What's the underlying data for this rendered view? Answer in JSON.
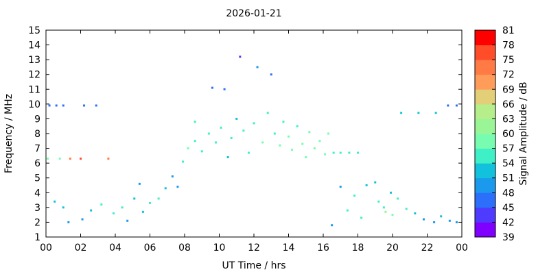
{
  "chart_data": {
    "type": "scatter",
    "title": "2026-01-21",
    "xlabel": "UT Time / hrs",
    "ylabel": "Frequency / MHz",
    "xlim": [
      0,
      24
    ],
    "ylim": [
      1,
      15
    ],
    "x_ticks": [
      "00",
      "02",
      "04",
      "06",
      "08",
      "10",
      "12",
      "14",
      "16",
      "18",
      "20",
      "22",
      "00"
    ],
    "y_ticks": [
      "1",
      "2",
      "3",
      "4",
      "5",
      "6",
      "7",
      "8",
      "9",
      "10",
      "11",
      "12",
      "13",
      "14",
      "15"
    ],
    "colorbar": {
      "label": "Signal Amplitude / dB",
      "ticks": [
        "39",
        "42",
        "45",
        "48",
        "51",
        "54",
        "57",
        "60",
        "63",
        "66",
        "69",
        "72",
        "75",
        "78",
        "81"
      ],
      "min": 39,
      "max": 81,
      "colors": [
        "#7f00ff",
        "#4f3bff",
        "#2b6ffa",
        "#1a99ed",
        "#12c2dc",
        "#3ff0c6",
        "#78fdb0",
        "#9af596",
        "#b6ee8b",
        "#e3cf78",
        "#ff9c5a",
        "#ff7a45",
        "#ff4d2a",
        "#ff0000"
      ]
    },
    "series": [
      {
        "points": [
          [
            0.2,
            9.9,
            47
          ],
          [
            0.6,
            9.9,
            47
          ],
          [
            1.0,
            9.9,
            47
          ],
          [
            2.2,
            9.9,
            47
          ],
          [
            2.9,
            9.9,
            47
          ],
          [
            0.1,
            6.3,
            58
          ],
          [
            0.8,
            6.3,
            58
          ],
          [
            1.4,
            6.3,
            72
          ],
          [
            2.0,
            6.3,
            76
          ],
          [
            3.6,
            6.3,
            72
          ],
          [
            0.5,
            3.4,
            52
          ],
          [
            1.0,
            3.0,
            52
          ],
          [
            1.3,
            2.0,
            48
          ],
          [
            2.1,
            2.2,
            50
          ],
          [
            2.6,
            2.8,
            53
          ],
          [
            3.2,
            3.2,
            54
          ],
          [
            3.9,
            2.6,
            54
          ],
          [
            4.4,
            3.0,
            55
          ],
          [
            4.7,
            2.1,
            50
          ],
          [
            5.1,
            3.6,
            53
          ],
          [
            5.4,
            4.6,
            50
          ],
          [
            5.6,
            2.7,
            53
          ],
          [
            6.0,
            3.3,
            55
          ],
          [
            6.5,
            3.6,
            55
          ],
          [
            6.9,
            4.3,
            53
          ],
          [
            7.3,
            5.1,
            50
          ],
          [
            7.6,
            4.4,
            50
          ],
          [
            7.9,
            6.1,
            55
          ],
          [
            8.2,
            7.0,
            57
          ],
          [
            8.6,
            7.5,
            55
          ],
          [
            8.6,
            8.8,
            55
          ],
          [
            9.0,
            6.8,
            56
          ],
          [
            9.4,
            8.0,
            55
          ],
          [
            9.6,
            11.1,
            45
          ],
          [
            9.8,
            7.4,
            55
          ],
          [
            10.1,
            8.4,
            55
          ],
          [
            10.3,
            11.0,
            45
          ],
          [
            10.5,
            6.4,
            52
          ],
          [
            10.7,
            7.7,
            55
          ],
          [
            11.0,
            9.0,
            53
          ],
          [
            11.2,
            13.2,
            43
          ],
          [
            11.4,
            8.2,
            55
          ],
          [
            11.7,
            6.7,
            55
          ],
          [
            12.0,
            8.7,
            55
          ],
          [
            12.2,
            12.5,
            48
          ],
          [
            12.5,
            7.4,
            57
          ],
          [
            12.8,
            9.4,
            56
          ],
          [
            13.0,
            12.0,
            46
          ],
          [
            13.2,
            8.0,
            55
          ],
          [
            13.5,
            7.2,
            57
          ],
          [
            13.7,
            8.8,
            55
          ],
          [
            14.0,
            7.8,
            57
          ],
          [
            14.2,
            6.9,
            58
          ],
          [
            14.5,
            8.5,
            56
          ],
          [
            14.8,
            7.3,
            58
          ],
          [
            15.0,
            6.4,
            58
          ],
          [
            15.2,
            8.1,
            57
          ],
          [
            15.5,
            7.0,
            58
          ],
          [
            15.8,
            7.5,
            59
          ],
          [
            16.1,
            6.6,
            57
          ],
          [
            16.3,
            8.0,
            57
          ],
          [
            16.6,
            6.7,
            55
          ],
          [
            17.0,
            6.7,
            55
          ],
          [
            17.5,
            6.7,
            55
          ],
          [
            18.0,
            6.7,
            55
          ],
          [
            18.5,
            4.5,
            53
          ],
          [
            19.0,
            4.7,
            52
          ],
          [
            19.2,
            3.4,
            54
          ],
          [
            19.5,
            3.0,
            55
          ],
          [
            19.9,
            4.0,
            53
          ],
          [
            20.3,
            3.6,
            54
          ],
          [
            20.8,
            2.9,
            54
          ],
          [
            21.3,
            2.6,
            52
          ],
          [
            21.8,
            2.2,
            50
          ],
          [
            22.4,
            2.0,
            50
          ],
          [
            22.8,
            2.4,
            52
          ],
          [
            23.3,
            2.1,
            50
          ],
          [
            23.7,
            2.0,
            50
          ],
          [
            20.5,
            9.4,
            51
          ],
          [
            21.5,
            9.4,
            51
          ],
          [
            22.5,
            9.4,
            51
          ],
          [
            23.2,
            9.9,
            45
          ],
          [
            23.7,
            9.9,
            45
          ],
          [
            17.0,
            4.4,
            50
          ],
          [
            17.4,
            2.8,
            55
          ],
          [
            17.8,
            3.8,
            54
          ],
          [
            18.2,
            2.3,
            55
          ],
          [
            19.6,
            2.7,
            60
          ],
          [
            20.0,
            2.5,
            58
          ],
          [
            16.5,
            1.8,
            48
          ]
        ]
      }
    ]
  }
}
